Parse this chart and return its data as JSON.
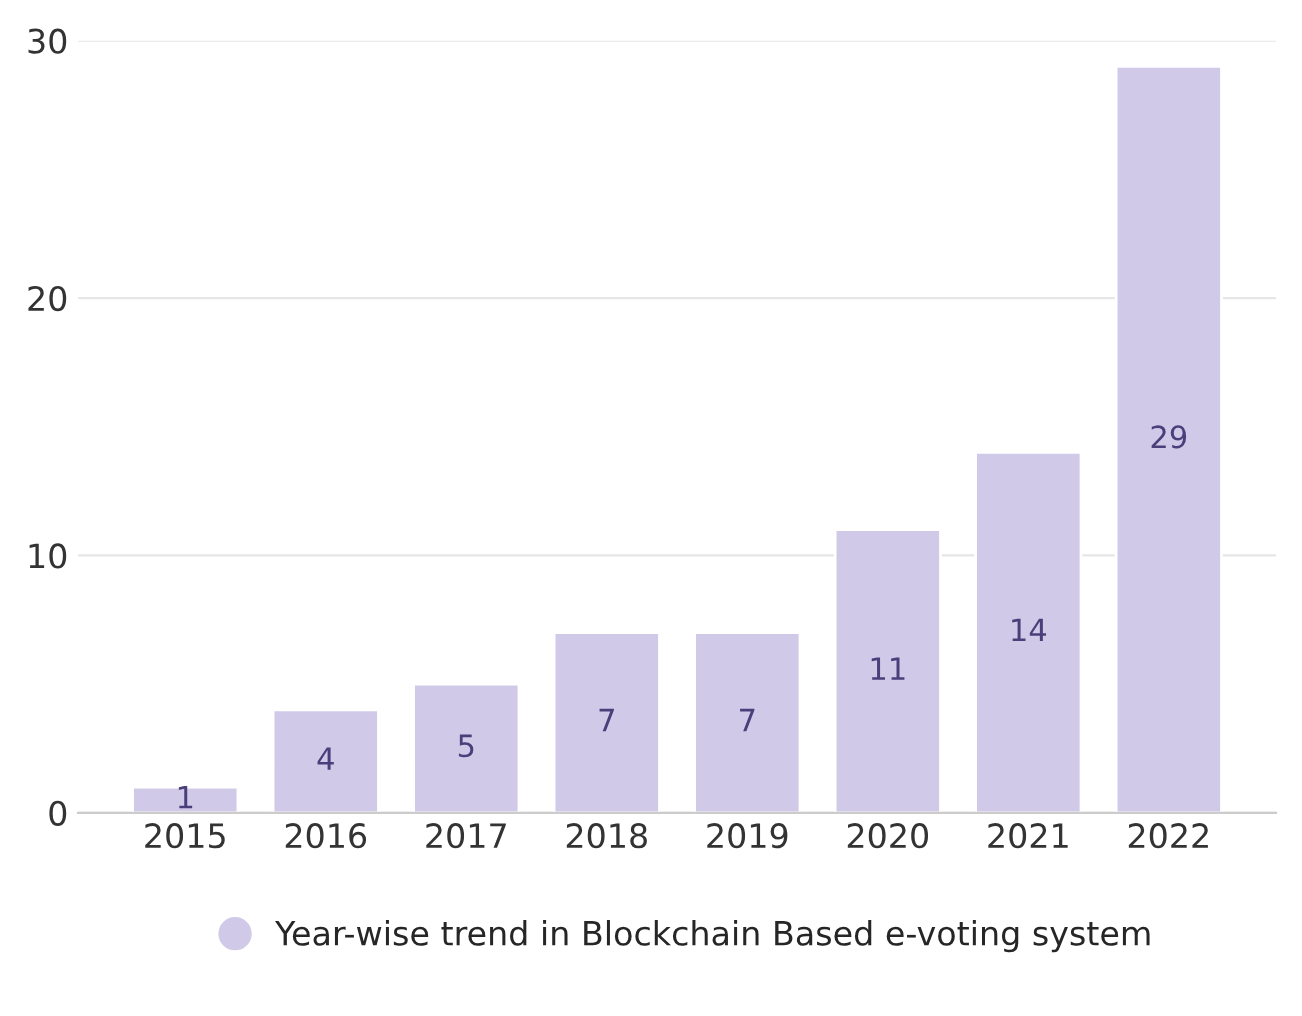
{
  "chart_data": {
    "type": "bar",
    "categories": [
      "2015",
      "2016",
      "2017",
      "2018",
      "2019",
      "2020",
      "2021",
      "2022"
    ],
    "series": [
      {
        "name": "Year-wise trend in Blockchain Based e-voting system",
        "color": "#d0cae8",
        "values": [
          1,
          4,
          5,
          7,
          7,
          11,
          14,
          29
        ]
      }
    ],
    "ylim": [
      0,
      30
    ],
    "yticks": [
      0,
      10,
      20,
      30
    ],
    "grid": "y",
    "data_labels": true,
    "legend": "bottom"
  }
}
